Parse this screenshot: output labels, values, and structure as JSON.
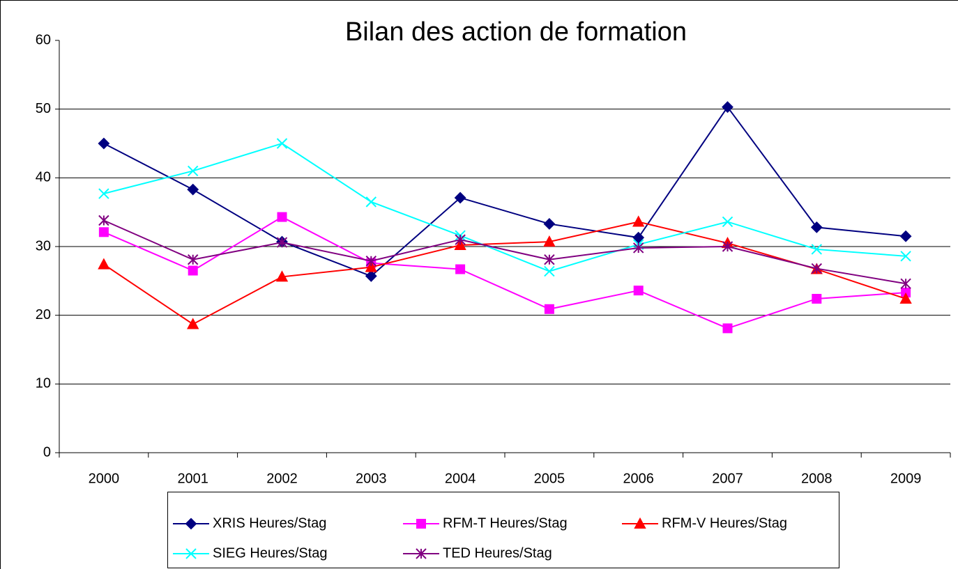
{
  "chart_data": {
    "type": "line",
    "title": "Bilan des action de formation",
    "categories": [
      "2000",
      "2001",
      "2002",
      "2003",
      "2004",
      "2005",
      "2006",
      "2007",
      "2008",
      "2009"
    ],
    "ylim": [
      0,
      60
    ],
    "yticks": [
      0,
      10,
      20,
      30,
      40,
      50,
      60
    ],
    "grid": true,
    "legend": "bottom",
    "series": [
      {
        "name": "XRIS Heures/Stag",
        "color": "#000080",
        "marker": "diamond",
        "values": [
          45.0,
          38.3,
          30.7,
          25.7,
          37.1,
          33.3,
          31.3,
          50.3,
          32.8,
          31.5
        ]
      },
      {
        "name": "RFM-T Heures/Stag",
        "color": "#ff00ff",
        "marker": "square",
        "values": [
          32.1,
          26.5,
          34.3,
          27.6,
          26.7,
          20.9,
          23.6,
          18.1,
          22.4,
          23.3
        ]
      },
      {
        "name": "RFM-V Heures/Stag",
        "color": "#ff0000",
        "marker": "triangle",
        "values": [
          27.4,
          18.7,
          25.6,
          27.0,
          30.2,
          30.7,
          33.6,
          30.5,
          26.7,
          22.4
        ]
      },
      {
        "name": "SIEG Heures/Stag",
        "color": "#00ffff",
        "marker": "x",
        "values": [
          37.7,
          41.0,
          45.0,
          36.5,
          31.6,
          26.4,
          30.3,
          33.6,
          29.6,
          28.6
        ]
      },
      {
        "name": "TED Heures/Stag",
        "color": "#800080",
        "marker": "star",
        "values": [
          33.8,
          28.1,
          30.6,
          27.9,
          31.0,
          28.1,
          29.8,
          30.0,
          26.8,
          24.6
        ]
      }
    ]
  }
}
